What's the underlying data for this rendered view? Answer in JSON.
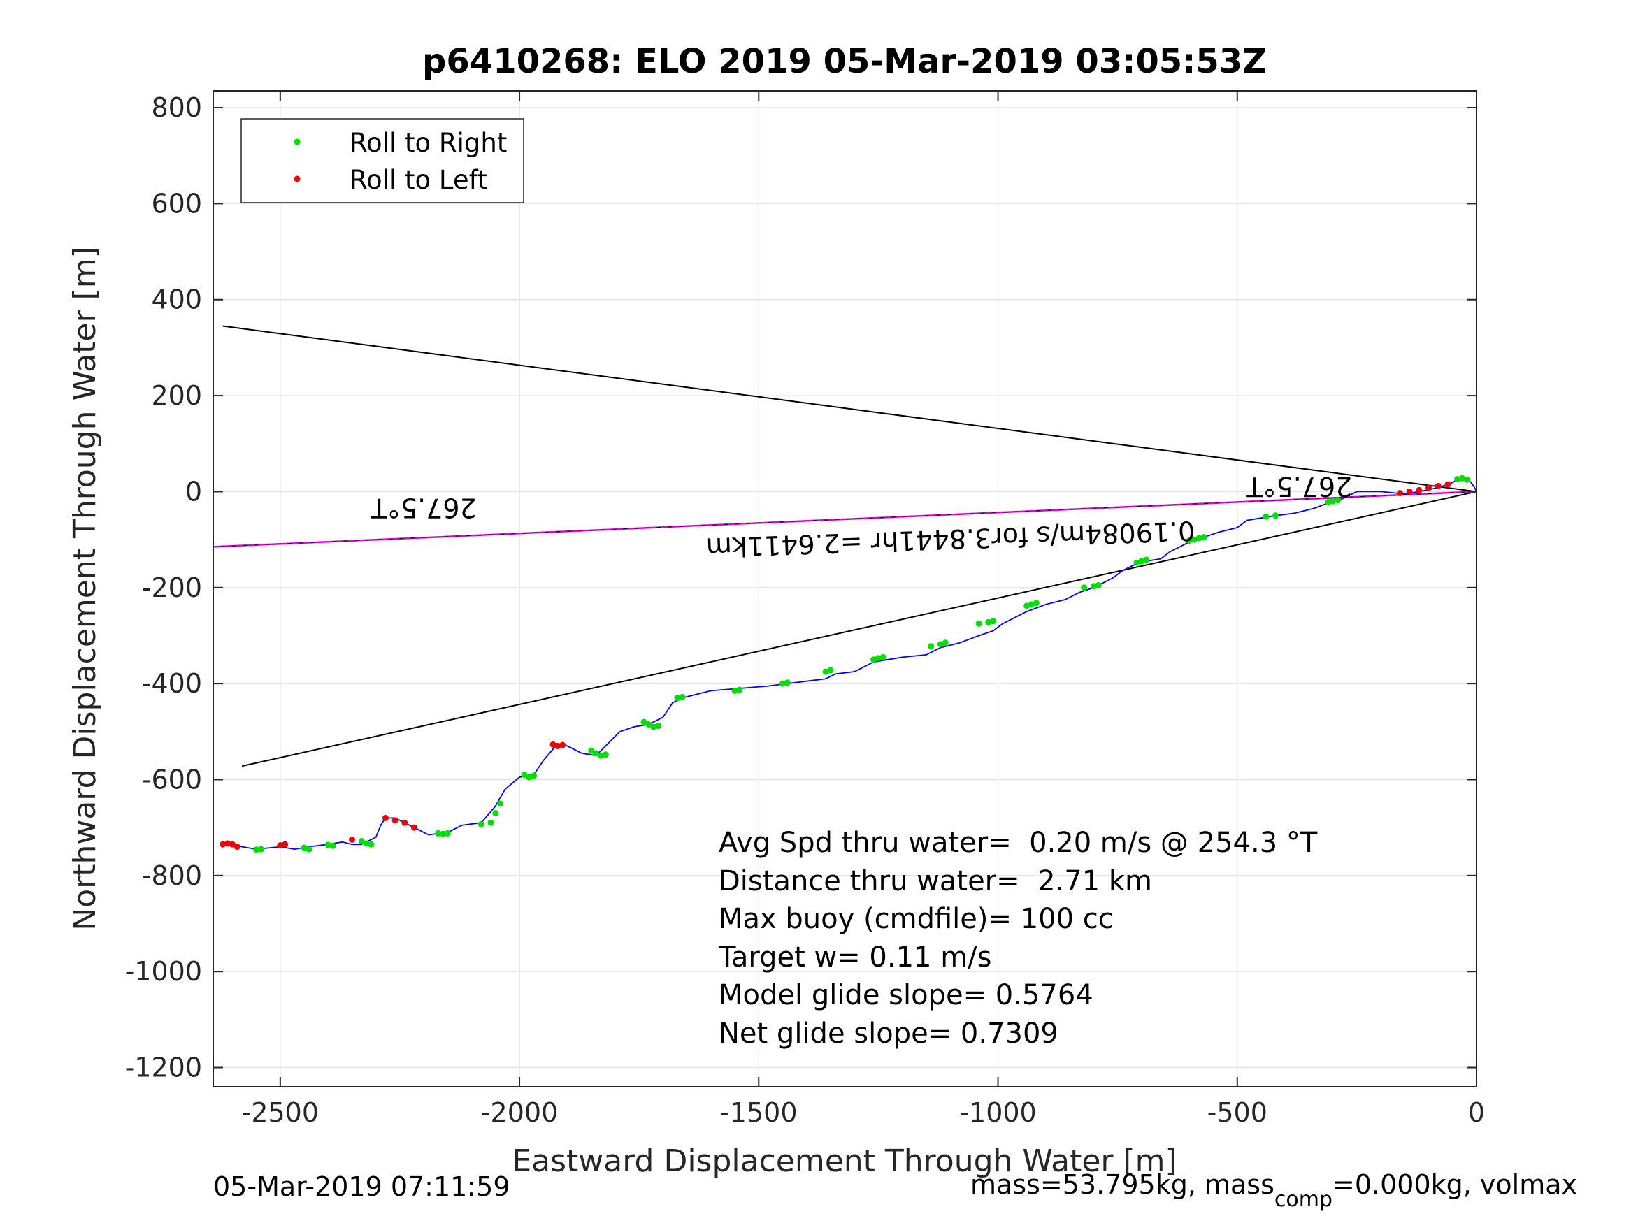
{
  "chart_data": {
    "type": "scatter",
    "title": "p6410268: ELO 2019 05-Mar-2019 03:05:53Z",
    "xlabel": "Eastward Displacement Through Water [m]",
    "ylabel": "Northward Displacement Through Water [m]",
    "xlim": [
      -2640,
      0
    ],
    "ylim": [
      -1240,
      835
    ],
    "xticks": [
      -2500,
      -2000,
      -1500,
      -1000,
      -500,
      0
    ],
    "yticks": [
      800,
      600,
      400,
      200,
      0,
      -200,
      -400,
      -600,
      -800,
      -1000,
      -1200
    ],
    "grid": true,
    "legend": {
      "placement": "top-left",
      "entries": [
        "Roll to Right",
        "Roll to Left"
      ]
    },
    "colors": {
      "right": "#00dd00",
      "left": "#ee0000",
      "track": "#0000ff",
      "current": "#dd00dd",
      "guide": "#000000"
    },
    "track": {
      "x": [
        0,
        -5,
        -12,
        -20,
        -30,
        -40,
        -48,
        -60,
        -75,
        -95,
        -120,
        -150,
        -200,
        -250,
        -280,
        -300,
        -340,
        -380,
        -420,
        -450,
        -480,
        -500,
        -540,
        -570,
        -600,
        -620,
        -640,
        -660,
        -690,
        -710,
        -740,
        -760,
        -780,
        -800,
        -830,
        -860,
        -900,
        -940,
        -970,
        -990,
        -1010,
        -1040,
        -1080,
        -1100,
        -1120,
        -1150,
        -1200,
        -1230,
        -1260,
        -1280,
        -1300,
        -1340,
        -1360,
        -1400,
        -1440,
        -1480,
        -1540,
        -1600,
        -1640,
        -1660,
        -1680,
        -1700,
        -1730,
        -1760,
        -1790,
        -1810,
        -1840,
        -1870,
        -1900,
        -1920,
        -1950,
        -1970,
        -2000,
        -2030,
        -2050,
        -2080,
        -2120,
        -2150,
        -2190,
        -2220,
        -2240,
        -2260,
        -2280,
        -2290,
        -2300,
        -2330,
        -2350,
        -2370,
        -2400,
        -2440,
        -2470,
        -2500,
        -2550,
        -2580,
        -2600
      ],
      "y": [
        0,
        10,
        20,
        25,
        28,
        26,
        20,
        15,
        10,
        5,
        0,
        -5,
        0,
        0,
        -15,
        -20,
        -35,
        -45,
        -50,
        -55,
        -60,
        -75,
        -85,
        -95,
        -105,
        -115,
        -125,
        -140,
        -145,
        -150,
        -165,
        -180,
        -190,
        -200,
        -210,
        -225,
        -235,
        -250,
        -265,
        -275,
        -290,
        -300,
        -315,
        -320,
        -325,
        -340,
        -345,
        -350,
        -355,
        -365,
        -375,
        -380,
        -390,
        -395,
        -400,
        -405,
        -410,
        -415,
        -425,
        -430,
        -440,
        -470,
        -485,
        -490,
        -500,
        -520,
        -550,
        -545,
        -530,
        -525,
        -560,
        -590,
        -595,
        -620,
        -655,
        -690,
        -695,
        -710,
        -715,
        -700,
        -690,
        -680,
        -680,
        -695,
        -720,
        -735,
        -735,
        -730,
        -735,
        -740,
        -745,
        -740,
        -745,
        -740,
        -735
      ],
      "roll_right_x": [
        -20,
        -30,
        -40,
        -290,
        -300,
        -310,
        -420,
        -440,
        -570,
        -580,
        -590,
        -600,
        -690,
        -700,
        -710,
        -790,
        -800,
        -820,
        -920,
        -930,
        -940,
        -1010,
        -1020,
        -1040,
        -1110,
        -1120,
        -1140,
        -1240,
        -1250,
        -1260,
        -1350,
        -1360,
        -1440,
        -1450,
        -1540,
        -1550,
        -1660,
        -1670,
        -1710,
        -1720,
        -1730,
        -1740,
        -1820,
        -1830,
        -1840,
        -1850,
        -1970,
        -1980,
        -1990,
        -2040,
        -2050,
        -2060,
        -2080,
        -2150,
        -2160,
        -2170,
        -2310,
        -2320,
        -2330,
        -2390,
        -2400,
        -2440,
        -2450,
        -2540,
        -2550
      ],
      "roll_right_y": [
        25,
        28,
        26,
        -18,
        -20,
        -22,
        -50,
        -52,
        -95,
        -97,
        -100,
        -102,
        -142,
        -145,
        -148,
        -195,
        -197,
        -200,
        -232,
        -235,
        -238,
        -270,
        -272,
        -275,
        -315,
        -318,
        -322,
        -345,
        -347,
        -350,
        -372,
        -375,
        -398,
        -400,
        -413,
        -415,
        -428,
        -430,
        -488,
        -490,
        -485,
        -480,
        -548,
        -550,
        -545,
        -540,
        -592,
        -595,
        -590,
        -650,
        -670,
        -690,
        -693,
        -712,
        -713,
        -712,
        -735,
        -733,
        -728,
        -738,
        -736,
        -745,
        -742,
        -745,
        -746
      ],
      "roll_left_x": [
        -60,
        -80,
        -100,
        -120,
        -140,
        -160,
        -1910,
        -1920,
        -1930,
        -2220,
        -2240,
        -2260,
        -2280,
        -2350,
        -2490,
        -2500,
        -2590,
        -2600,
        -2610,
        -2620
      ],
      "roll_left_y": [
        15,
        12,
        8,
        3,
        0,
        -3,
        -528,
        -530,
        -527,
        -700,
        -690,
        -685,
        -680,
        -725,
        -735,
        -737,
        -740,
        -735,
        -733,
        -735
      ]
    },
    "current": {
      "x": [
        0,
        -2640
      ],
      "y": [
        0,
        -115
      ],
      "heading_label": "267.5°T"
    },
    "guide_lines": [
      {
        "x": [
          0,
          -2620
        ],
        "y": [
          0,
          345
        ]
      },
      {
        "x": [
          0,
          -2580
        ],
        "y": [
          0,
          -572
        ]
      }
    ],
    "annotations": [
      {
        "text": "267.5°T",
        "x": -2200,
        "y": -15,
        "rotation": 180
      },
      {
        "text": "267.5°T",
        "x": -370,
        "y": 30,
        "rotation": 180
      },
      {
        "text": "0.19084m/s for3.8441hr =2.6411km",
        "x": -1100,
        "y": -80,
        "rotation": 178
      }
    ],
    "stats": [
      "Avg Spd thru water=  0.20 m/s @ 254.3 °T",
      "Distance thru water=  2.71 km",
      "Max buoy (cmdfile)= 100 cc",
      "Target w= 0.11 m/s",
      "Model glide slope= 0.5764",
      "Net glide slope= 0.7309"
    ]
  },
  "footer": {
    "timestamp": "05-Mar-2019 07:11:59",
    "mass_prefix": "mass=53.795kg, mass",
    "mass_sub": "comp",
    "mass_suffix": "=0.000kg, volmax"
  }
}
